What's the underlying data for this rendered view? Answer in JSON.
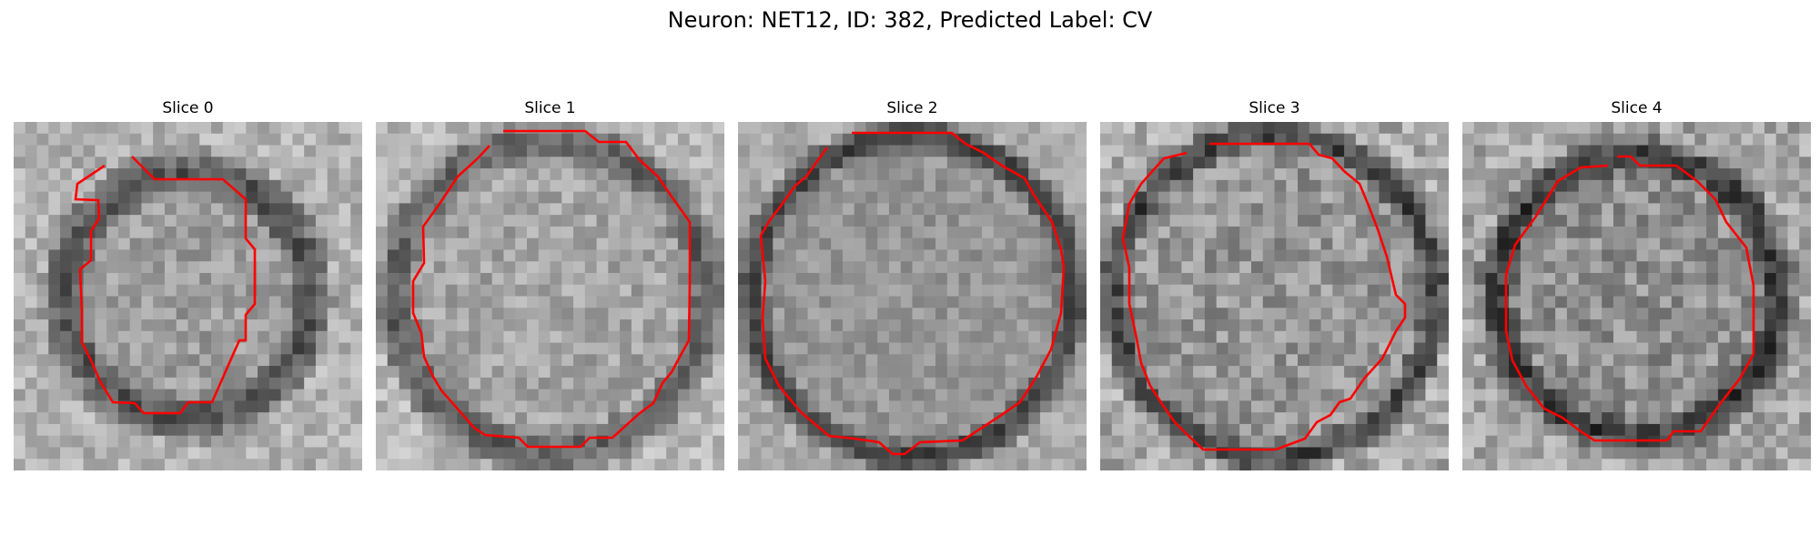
{
  "figure": {
    "title": "Neuron: NET12, ID: 382, Predicted Label: CV"
  },
  "colors": {
    "contour": "#ff0000",
    "background": "#ffffff",
    "colormap": "gray"
  },
  "panels": [
    {
      "title": "Slice 0",
      "base_gray": 158,
      "ring_inner": 0.56,
      "ring_outer": 0.84,
      "ring_depth": 75,
      "noise": 30
    },
    {
      "title": "Slice 1",
      "base_gray": 165,
      "ring_inner": 0.76,
      "ring_outer": 1.02,
      "ring_depth": 70,
      "noise": 30
    },
    {
      "title": "Slice 2",
      "base_gray": 150,
      "ring_inner": 0.82,
      "ring_outer": 1.02,
      "ring_depth": 85,
      "noise": 24
    },
    {
      "title": "Slice 3",
      "base_gray": 150,
      "ring_inner": 0.82,
      "ring_outer": 1.02,
      "ring_depth": 80,
      "noise": 38
    },
    {
      "title": "Slice 4",
      "base_gray": 145,
      "ring_inner": 0.68,
      "ring_outer": 0.92,
      "ring_depth": 85,
      "noise": 38
    }
  ]
}
